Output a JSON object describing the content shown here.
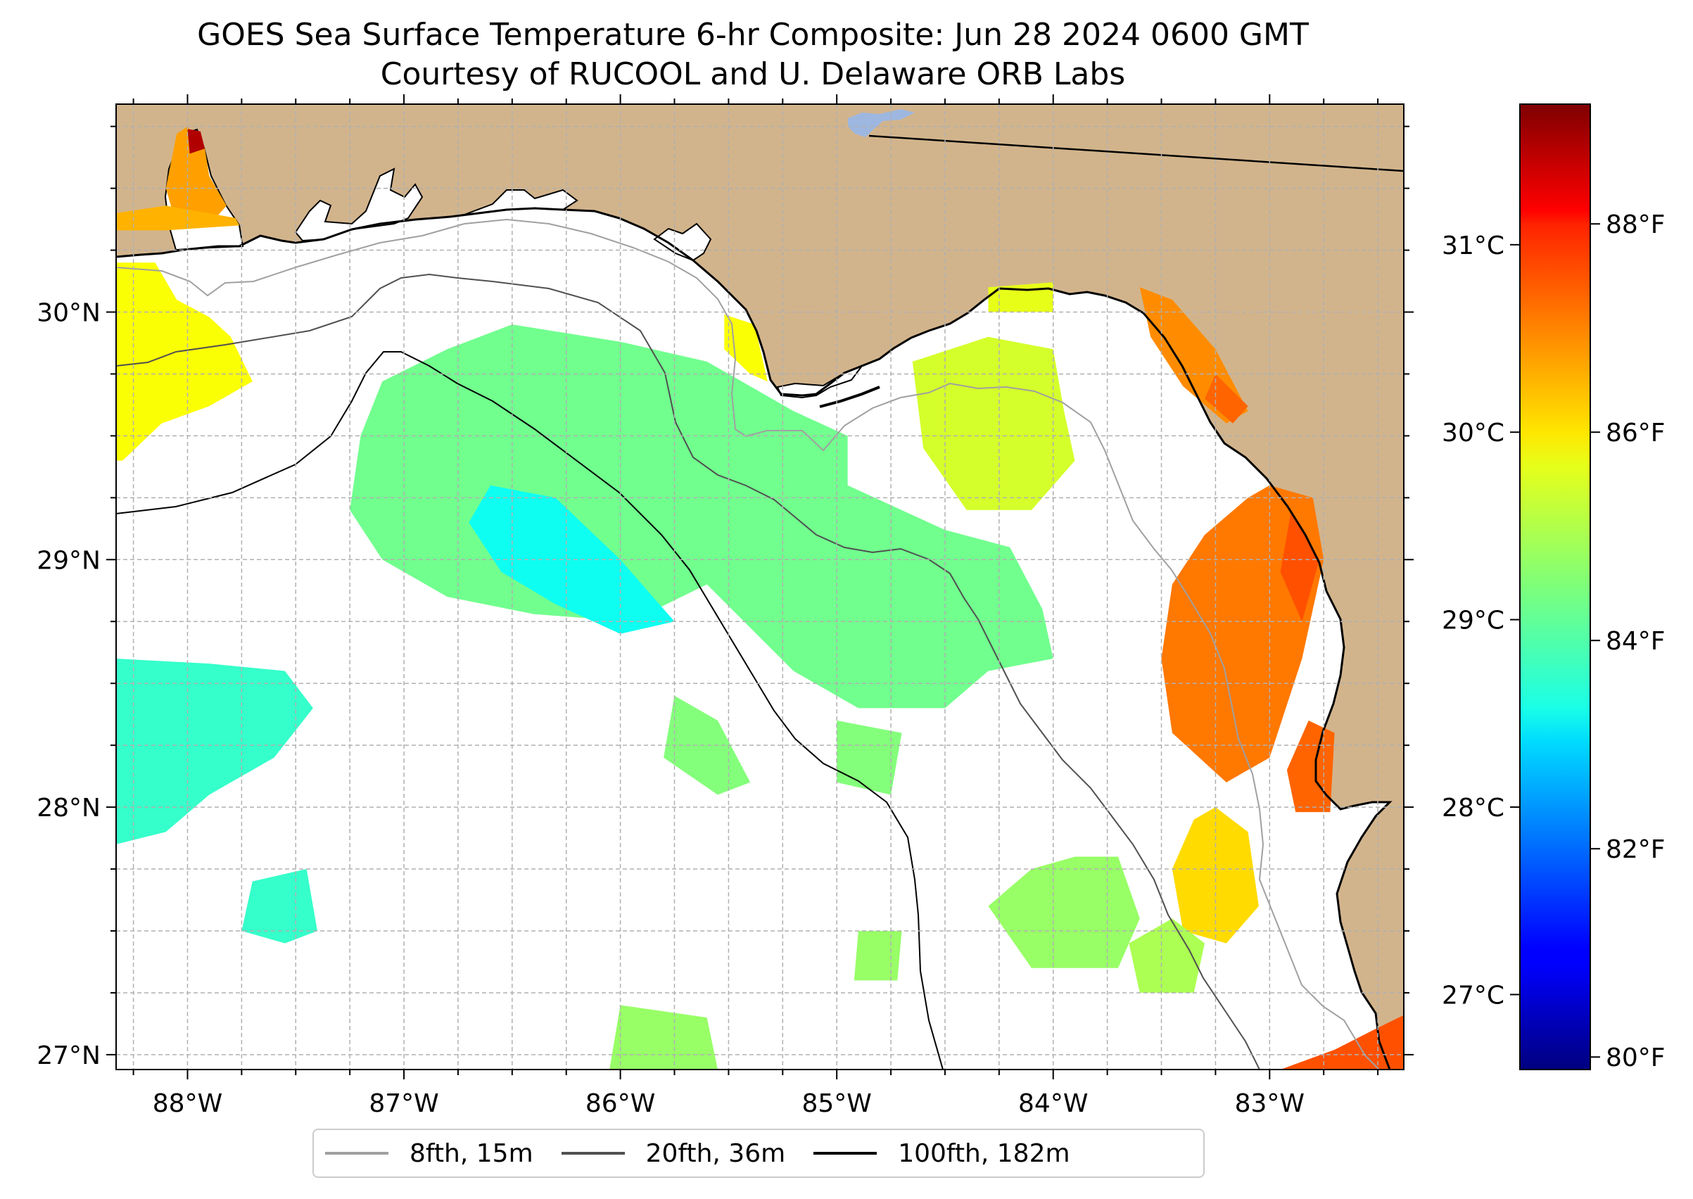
{
  "title": "GOES Sea Surface Temperature 6-hr Composite: Jun 28 2024 0600 GMT",
  "subtitle": "Courtesy of RUCOOL and U. Delaware ORB Labs",
  "map": {
    "lon_range": [
      -88.33,
      -82.38
    ],
    "lat_range": [
      26.94,
      30.84
    ],
    "lon_ticks": [
      {
        "value": -88,
        "label": "88°W"
      },
      {
        "value": -87,
        "label": "87°W"
      },
      {
        "value": -86,
        "label": "86°W"
      },
      {
        "value": -85,
        "label": "85°W"
      },
      {
        "value": -84,
        "label": "84°W"
      },
      {
        "value": -83,
        "label": "83°W"
      }
    ],
    "lat_ticks": [
      {
        "value": 27,
        "label": "27°N"
      },
      {
        "value": 28,
        "label": "28°N"
      },
      {
        "value": 29,
        "label": "29°N"
      },
      {
        "value": 30,
        "label": "30°N"
      }
    ],
    "gridlines": "dashed",
    "land_color": "#d2b48c",
    "water_color": "#ffffff",
    "lake_color": "#9db7e0"
  },
  "colorbar": {
    "colormap": "jet",
    "celsius_range": [
      26.6,
      31.75
    ],
    "celsius_ticks": [
      {
        "value": 27,
        "label": "27°C"
      },
      {
        "value": 28,
        "label": "28°C"
      },
      {
        "value": 29,
        "label": "29°C"
      },
      {
        "value": 30,
        "label": "30°C"
      },
      {
        "value": 31,
        "label": "31°C"
      }
    ],
    "fahrenheit_ticks": [
      {
        "value": 80,
        "label": "80°F"
      },
      {
        "value": 82,
        "label": "82°F"
      },
      {
        "value": 84,
        "label": "84°F"
      },
      {
        "value": 86,
        "label": "86°F"
      },
      {
        "value": 88,
        "label": "88°F"
      }
    ]
  },
  "legend": {
    "placement": "bottom-center",
    "entries": [
      {
        "label": "8fth, 15m",
        "color": "#a0a0a0"
      },
      {
        "label": "20fth, 36m",
        "color": "#505050"
      },
      {
        "label": "100fth, 182m",
        "color": "#000000"
      }
    ]
  },
  "sst_regions": [
    {
      "name": "mobile-bay",
      "temp_c": 30.3,
      "points": [
        [
          -88.05,
          30.72
        ],
        [
          -88.0,
          30.75
        ],
        [
          -87.92,
          30.66
        ],
        [
          -87.9,
          30.55
        ],
        [
          -87.82,
          30.43
        ],
        [
          -87.9,
          30.35
        ],
        [
          -88.05,
          30.35
        ],
        [
          -88.1,
          30.5
        ]
      ]
    },
    {
      "name": "mobile-bay-head",
      "temp_c": 31.5,
      "points": [
        [
          -88.0,
          30.74
        ],
        [
          -87.94,
          30.73
        ],
        [
          -87.92,
          30.66
        ],
        [
          -87.99,
          30.64
        ]
      ]
    },
    {
      "name": "alabama-shelf",
      "temp_c": 30.2,
      "points": [
        [
          -88.33,
          30.4
        ],
        [
          -88.1,
          30.43
        ],
        [
          -87.78,
          30.38
        ],
        [
          -87.76,
          30.35
        ],
        [
          -88.1,
          30.33
        ],
        [
          -88.33,
          30.33
        ]
      ]
    },
    {
      "name": "mississippi-shelf",
      "temp_c": 29.8,
      "points": [
        [
          -88.33,
          30.2
        ],
        [
          -88.15,
          30.2
        ],
        [
          -88.05,
          30.05
        ],
        [
          -87.9,
          29.98
        ],
        [
          -87.8,
          29.9
        ],
        [
          -87.7,
          29.72
        ],
        [
          -87.9,
          29.62
        ],
        [
          -88.12,
          29.55
        ],
        [
          -88.3,
          29.4
        ],
        [
          -88.33,
          29.4
        ]
      ]
    },
    {
      "name": "central-shelf",
      "temp_c": 29.1,
      "points": [
        [
          -87.1,
          29.72
        ],
        [
          -86.8,
          29.85
        ],
        [
          -86.5,
          29.95
        ],
        [
          -86.0,
          29.88
        ],
        [
          -85.6,
          29.8
        ],
        [
          -85.4,
          29.7
        ],
        [
          -85.2,
          29.6
        ],
        [
          -84.95,
          29.5
        ],
        [
          -84.95,
          29.3
        ],
        [
          -84.5,
          29.12
        ],
        [
          -84.2,
          29.05
        ],
        [
          -84.05,
          28.8
        ],
        [
          -84.0,
          28.6
        ],
        [
          -84.3,
          28.55
        ],
        [
          -84.5,
          28.4
        ],
        [
          -84.9,
          28.4
        ],
        [
          -85.2,
          28.55
        ],
        [
          -85.6,
          28.9
        ],
        [
          -85.95,
          28.75
        ],
        [
          -86.4,
          28.78
        ],
        [
          -86.8,
          28.85
        ],
        [
          -87.1,
          29.0
        ],
        [
          -87.25,
          29.2
        ],
        [
          -87.2,
          29.5
        ]
      ]
    },
    {
      "name": "central-shelf-cool",
      "temp_c": 28.6,
      "points": [
        [
          -86.6,
          29.3
        ],
        [
          -86.3,
          29.25
        ],
        [
          -86.0,
          29.0
        ],
        [
          -85.75,
          28.75
        ],
        [
          -86.0,
          28.7
        ],
        [
          -86.3,
          28.82
        ],
        [
          -86.55,
          28.95
        ],
        [
          -86.7,
          29.15
        ]
      ]
    },
    {
      "name": "big-bend-north",
      "temp_c": 29.6,
      "points": [
        [
          -84.65,
          29.8
        ],
        [
          -84.3,
          29.9
        ],
        [
          -84.0,
          29.85
        ],
        [
          -83.95,
          29.6
        ],
        [
          -83.9,
          29.4
        ],
        [
          -84.1,
          29.2
        ],
        [
          -84.4,
          29.2
        ],
        [
          -84.6,
          29.45
        ]
      ]
    },
    {
      "name": "cape-san-blas-strip",
      "temp_c": 29.8,
      "points": [
        [
          -85.52,
          29.99
        ],
        [
          -85.38,
          29.95
        ],
        [
          -85.32,
          29.72
        ],
        [
          -85.4,
          29.75
        ],
        [
          -85.52,
          29.85
        ]
      ]
    },
    {
      "name": "apalachee-north",
      "temp_c": 29.7,
      "points": [
        [
          -84.3,
          30.1
        ],
        [
          -84.0,
          30.12
        ],
        [
          -84.0,
          30.0
        ],
        [
          -84.3,
          30.0
        ]
      ]
    },
    {
      "name": "suwannee-coast",
      "temp_c": 30.4,
      "points": [
        [
          -83.6,
          30.1
        ],
        [
          -83.45,
          30.05
        ],
        [
          -83.25,
          29.85
        ],
        [
          -83.1,
          29.6
        ],
        [
          -83.2,
          29.55
        ],
        [
          -83.4,
          29.7
        ],
        [
          -83.55,
          29.9
        ]
      ]
    },
    {
      "name": "suwannee-coast-warm",
      "temp_c": 30.6,
      "points": [
        [
          -83.25,
          29.75
        ],
        [
          -83.1,
          29.62
        ],
        [
          -83.17,
          29.55
        ],
        [
          -83.3,
          29.65
        ]
      ]
    },
    {
      "name": "tampa-shelf",
      "temp_c": 30.5,
      "points": [
        [
          -83.0,
          29.3
        ],
        [
          -82.8,
          29.25
        ],
        [
          -82.75,
          29.0
        ],
        [
          -82.85,
          28.6
        ],
        [
          -83.0,
          28.2
        ],
        [
          -83.2,
          28.1
        ],
        [
          -83.45,
          28.3
        ],
        [
          -83.5,
          28.6
        ],
        [
          -83.45,
          28.9
        ],
        [
          -83.3,
          29.1
        ],
        [
          -83.1,
          29.25
        ]
      ]
    },
    {
      "name": "tampa-inner-warm",
      "temp_c": 30.7,
      "points": [
        [
          -82.9,
          29.2
        ],
        [
          -82.77,
          29.0
        ],
        [
          -82.85,
          28.75
        ],
        [
          -82.95,
          28.95
        ]
      ]
    },
    {
      "name": "crystal-river",
      "temp_c": 30.6,
      "points": [
        [
          -82.82,
          28.35
        ],
        [
          -82.7,
          28.3
        ],
        [
          -82.72,
          27.98
        ],
        [
          -82.88,
          27.98
        ],
        [
          -82.92,
          28.15
        ]
      ]
    },
    {
      "name": "tampa-south",
      "temp_c": 30.0,
      "points": [
        [
          -83.25,
          28.0
        ],
        [
          -83.1,
          27.9
        ],
        [
          -83.05,
          27.6
        ],
        [
          -83.2,
          27.45
        ],
        [
          -83.4,
          27.5
        ],
        [
          -83.45,
          27.75
        ],
        [
          -83.35,
          27.95
        ]
      ]
    },
    {
      "name": "offshore-sw",
      "temp_c": 29.3,
      "points": [
        [
          -83.9,
          27.8
        ],
        [
          -83.7,
          27.8
        ],
        [
          -83.6,
          27.55
        ],
        [
          -83.7,
          27.35
        ],
        [
          -84.1,
          27.35
        ],
        [
          -84.3,
          27.6
        ],
        [
          -84.1,
          27.75
        ]
      ]
    },
    {
      "name": "offshore-s",
      "temp_c": 29.4,
      "points": [
        [
          -83.45,
          27.55
        ],
        [
          -83.3,
          27.45
        ],
        [
          -83.35,
          27.25
        ],
        [
          -83.6,
          27.25
        ],
        [
          -83.65,
          27.45
        ]
      ]
    },
    {
      "name": "charlotte-harbor",
      "temp_c": 30.7,
      "points": [
        [
          -82.52,
          27.1
        ],
        [
          -82.38,
          27.16
        ],
        [
          -82.38,
          26.94
        ],
        [
          -82.95,
          26.94
        ],
        [
          -82.7,
          27.02
        ]
      ]
    },
    {
      "name": "western-patch",
      "temp_c": 28.8,
      "points": [
        [
          -88.33,
          28.6
        ],
        [
          -87.9,
          28.58
        ],
        [
          -87.55,
          28.55
        ],
        [
          -87.42,
          28.4
        ],
        [
          -87.6,
          28.2
        ],
        [
          -87.9,
          28.05
        ],
        [
          -88.1,
          27.9
        ],
        [
          -88.33,
          27.85
        ]
      ]
    },
    {
      "name": "southwest-patch",
      "temp_c": 28.8,
      "points": [
        [
          -87.7,
          27.7
        ],
        [
          -87.45,
          27.75
        ],
        [
          -87.4,
          27.5
        ],
        [
          -87.55,
          27.45
        ],
        [
          -87.75,
          27.5
        ]
      ]
    },
    {
      "name": "mid-south-patch",
      "temp_c": 29.2,
      "points": [
        [
          -85.75,
          28.45
        ],
        [
          -85.55,
          28.35
        ],
        [
          -85.4,
          28.1
        ],
        [
          -85.55,
          28.05
        ],
        [
          -85.8,
          28.2
        ]
      ]
    },
    {
      "name": "mid-south-patch-2",
      "temp_c": 29.2,
      "points": [
        [
          -85.0,
          28.35
        ],
        [
          -84.7,
          28.3
        ],
        [
          -84.75,
          28.05
        ],
        [
          -85.0,
          28.1
        ]
      ]
    },
    {
      "name": "south-central-patch",
      "temp_c": 29.3,
      "points": [
        [
          -84.9,
          27.5
        ],
        [
          -84.7,
          27.5
        ],
        [
          -84.72,
          27.3
        ],
        [
          -84.92,
          27.3
        ]
      ]
    },
    {
      "name": "bottom-patch",
      "temp_c": 29.3,
      "points": [
        [
          -86.0,
          27.2
        ],
        [
          -85.6,
          27.15
        ],
        [
          -85.55,
          26.94
        ],
        [
          -86.05,
          26.94
        ]
      ]
    }
  ]
}
